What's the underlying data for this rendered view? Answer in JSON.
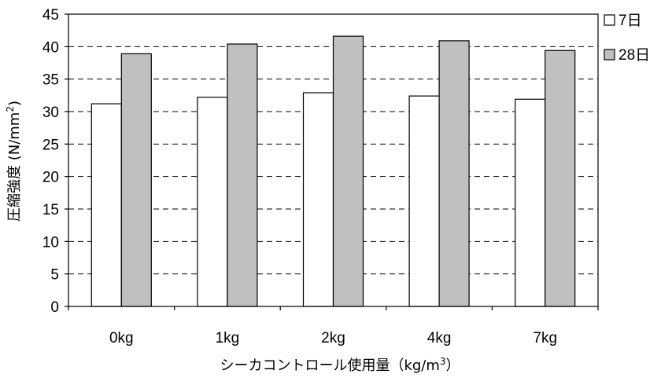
{
  "chart_data": {
    "type": "bar",
    "title": "",
    "xlabel": "シーカコントロール使用量（kg/m",
    "xlabel_sup": "3",
    "xlabel_suffix": "）",
    "ylabel": "圧縮強度 (N/mm",
    "ylabel_sup": "2",
    "ylabel_suffix": ")",
    "categories": [
      "0kg",
      "1kg",
      "2kg",
      "4kg",
      "7kg"
    ],
    "series": [
      {
        "name": "7日",
        "values": [
          31.2,
          32.2,
          32.9,
          32.4,
          31.9
        ],
        "color": "#ffffff"
      },
      {
        "name": "28日",
        "values": [
          38.9,
          40.4,
          41.6,
          40.9,
          39.4
        ],
        "color": "#c0c0c0"
      }
    ],
    "ylim": [
      0,
      45
    ],
    "yticks": [
      0,
      5,
      10,
      15,
      20,
      25,
      30,
      35,
      40,
      45
    ],
    "grid": "dashed horizontal",
    "legend_position": "right"
  }
}
